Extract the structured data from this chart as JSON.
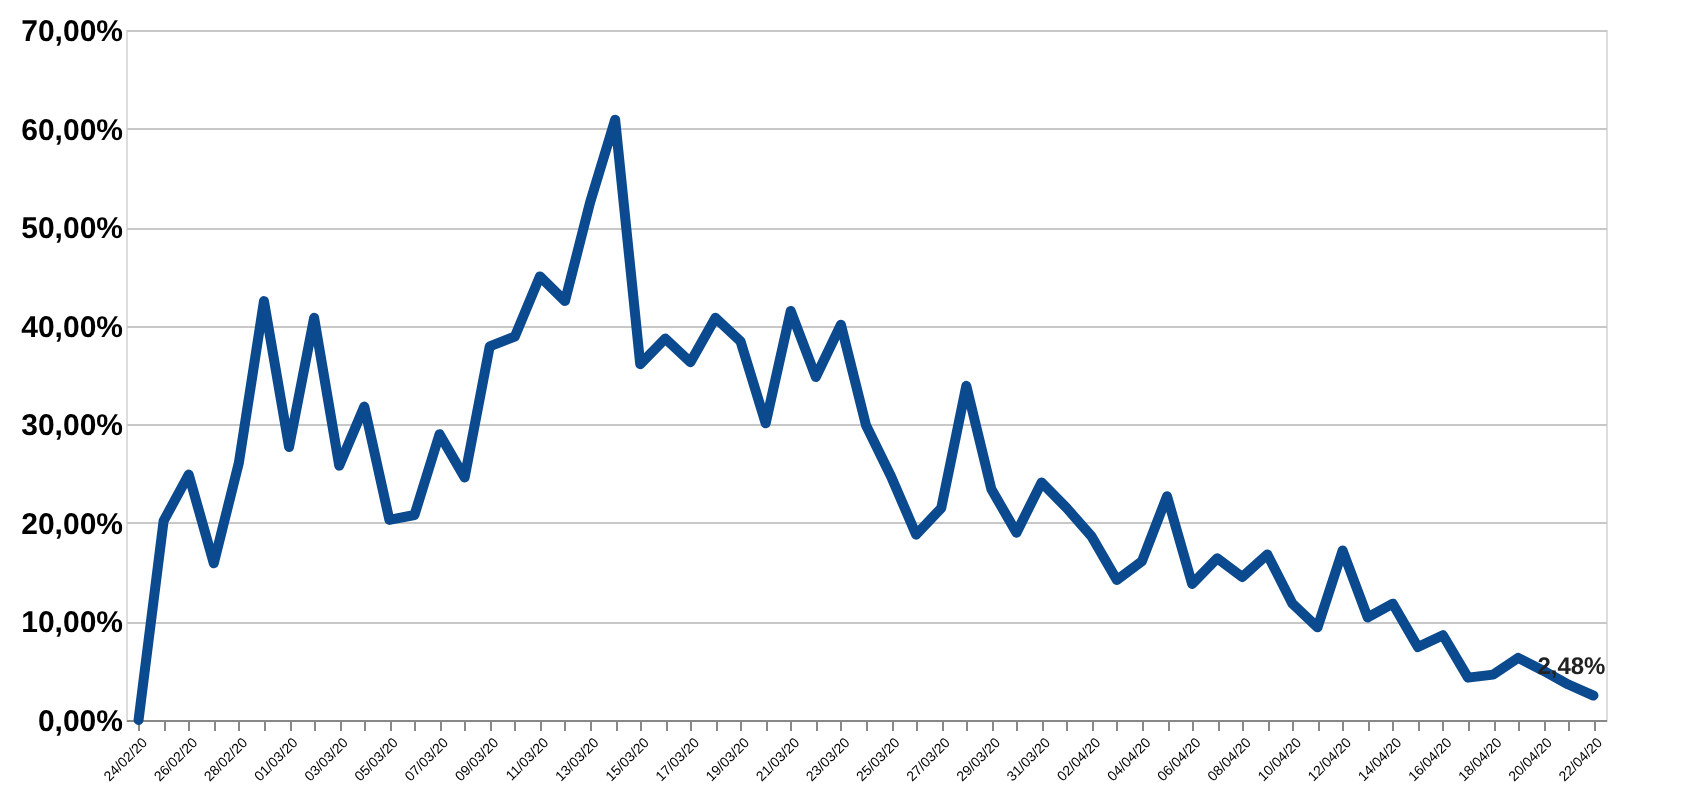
{
  "chart_data": {
    "type": "line",
    "categories": [
      "24/02/20",
      null,
      "26/02/20",
      null,
      "28/02/20",
      null,
      "01/03/20",
      null,
      "03/03/20",
      null,
      "05/03/20",
      null,
      "07/03/20",
      null,
      "09/03/20",
      null,
      "11/03/20",
      null,
      "13/03/20",
      null,
      "15/03/20",
      null,
      "17/03/20",
      null,
      "19/03/20",
      null,
      "21/03/20",
      null,
      "23/03/20",
      null,
      "25/03/20",
      null,
      "27/03/20",
      null,
      "29/03/20",
      null,
      "31/03/20",
      null,
      "02/04/20",
      null,
      "04/04/20",
      null,
      "06/04/20",
      null,
      "08/04/20",
      null,
      "10/04/20",
      null,
      "12/04/20",
      null,
      "14/04/20",
      null,
      "16/04/20",
      null,
      "18/04/20",
      null,
      "20/04/20",
      null,
      "22/04/20"
    ],
    "series": [
      {
        "color": "#0b4a8f",
        "values": [
          0,
          20.2,
          24.9,
          15.9,
          26.1,
          42.5,
          27.7,
          40.8,
          25.8,
          31.8,
          20.3,
          20.8,
          29.0,
          24.6,
          37.9,
          38.9,
          45.0,
          42.5,
          52.5,
          60.9,
          36.1,
          38.7,
          36.3,
          40.8,
          38.4,
          30.1,
          41.5,
          34.8,
          40.1,
          29.9,
          24.7,
          18.8,
          21.5,
          33.9,
          23.4,
          19.0,
          24.1,
          21.5,
          18.6,
          14.2,
          16.1,
          22.7,
          13.8,
          16.4,
          14.5,
          16.8,
          11.8,
          9.4,
          17.2,
          10.4,
          11.8,
          7.4,
          8.6,
          4.3,
          4.6,
          6.3,
          5.0,
          3.6,
          2.48
        ]
      }
    ],
    "ylim": [
      0,
      70
    ],
    "yticks": [
      {
        "value": 0,
        "label": "0,00%"
      },
      {
        "value": 10,
        "label": "10,00%"
      },
      {
        "value": 20,
        "label": "20,00%"
      },
      {
        "value": 30,
        "label": "30,00%"
      },
      {
        "value": 40,
        "label": "40,00%"
      },
      {
        "value": 50,
        "label": "50,00%"
      },
      {
        "value": 60,
        "label": "60,00%"
      },
      {
        "value": 70,
        "label": "70,00%"
      }
    ],
    "grid": "y",
    "marker": "none",
    "line_style": "solid",
    "annotations": [
      {
        "text": "2,48%",
        "x": "22/04/20",
        "y": 2.48
      }
    ]
  }
}
